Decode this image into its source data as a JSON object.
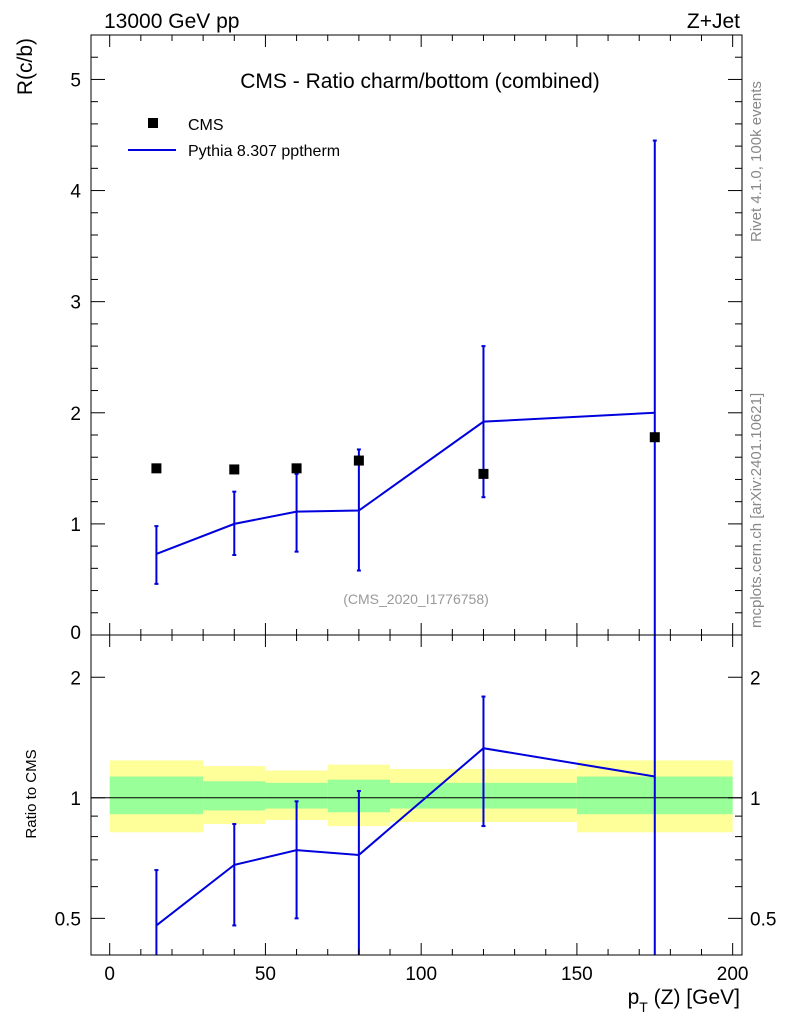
{
  "header": {
    "left_label": "13000 GeV pp",
    "right_label": "Z+Jet"
  },
  "side_labels": {
    "rivet": "Rivet 4.1.0,  100k events",
    "source": "mcplots.cern.ch [arXiv:2401.10621]"
  },
  "analysis_id": "(CMS_2020_I1776758)",
  "colors": {
    "data": "#000000",
    "mc": "#0000dd",
    "band_inner": "#99ff99",
    "band_outer": "#ffff99",
    "watermark": "#999999"
  },
  "chart_data": [
    {
      "panel": "main",
      "type": "scatter+line",
      "title": "CMS - Ratio charm/bottom (combined)",
      "ylabel": "R(c/b)",
      "xlabel": "",
      "xlim": [
        -6,
        203
      ],
      "ylim": [
        0,
        5.4
      ],
      "yticks": [
        1,
        2,
        3,
        4,
        5
      ],
      "ytick_labels": [
        "1",
        "2",
        "3",
        "4",
        "5"
      ],
      "zero_label": "0",
      "legend": {
        "position": "top-left",
        "entries": [
          {
            "name": "CMS",
            "marker": "square"
          },
          {
            "name": "Pythia 8.307 pptherm",
            "marker": "line"
          }
        ]
      },
      "series": [
        {
          "name": "CMS",
          "x": [
            15,
            40,
            60,
            80,
            120,
            175
          ],
          "y": [
            1.5,
            1.49,
            1.5,
            1.57,
            1.45,
            1.78
          ]
        },
        {
          "name": "Pythia 8.307 pptherm",
          "x": [
            15,
            40,
            60,
            80,
            120,
            175
          ],
          "y": [
            0.73,
            1.0,
            1.11,
            1.12,
            1.92,
            2.0
          ],
          "err_low": [
            0.46,
            0.72,
            0.75,
            0.58,
            1.24,
            0.0
          ],
          "err_high": [
            0.98,
            1.29,
            1.45,
            1.67,
            2.6,
            4.45
          ]
        }
      ]
    },
    {
      "panel": "ratio",
      "type": "line",
      "ylabel": "Ratio to CMS",
      "xlabel": "p_T (Z) [GeV]",
      "xlabel_main": "p",
      "xlabel_sub": "T",
      "xlabel_rest": " (Z) [GeV]",
      "xlim": [
        -6,
        203
      ],
      "ylim": [
        0.405,
        2.55
      ],
      "yscale": "log",
      "yticks": [
        0.5,
        1,
        2
      ],
      "ytick_labels": [
        "0.5",
        "1",
        "2"
      ],
      "xticks": [
        0,
        50,
        100,
        150,
        200
      ],
      "xtick_labels": [
        "0",
        "50",
        "100",
        "150",
        "200"
      ],
      "reference_line": 1,
      "bands": [
        {
          "x0": 0,
          "x1": 30,
          "outer": [
            0.82,
            1.24
          ],
          "inner": [
            0.91,
            1.13
          ]
        },
        {
          "x0": 30,
          "x1": 50,
          "outer": [
            0.86,
            1.2
          ],
          "inner": [
            0.93,
            1.1
          ]
        },
        {
          "x0": 50,
          "x1": 70,
          "outer": [
            0.88,
            1.17
          ],
          "inner": [
            0.94,
            1.09
          ]
        },
        {
          "x0": 70,
          "x1": 90,
          "outer": [
            0.85,
            1.21
          ],
          "inner": [
            0.92,
            1.11
          ]
        },
        {
          "x0": 90,
          "x1": 150,
          "outer": [
            0.87,
            1.18
          ],
          "inner": [
            0.94,
            1.09
          ]
        },
        {
          "x0": 150,
          "x1": 200,
          "outer": [
            0.82,
            1.24
          ],
          "inner": [
            0.91,
            1.13
          ]
        }
      ],
      "series": [
        {
          "name": "Pythia 8.307 pptherm",
          "x": [
            15,
            40,
            60,
            80,
            120,
            175
          ],
          "y": [
            0.48,
            0.68,
            0.74,
            0.72,
            1.33,
            1.13
          ],
          "err_low": [
            0.3,
            0.48,
            0.5,
            0.3,
            0.85,
            0.3
          ],
          "err_high": [
            0.66,
            0.86,
            0.98,
            1.04,
            1.79,
            2.55
          ]
        }
      ]
    }
  ]
}
